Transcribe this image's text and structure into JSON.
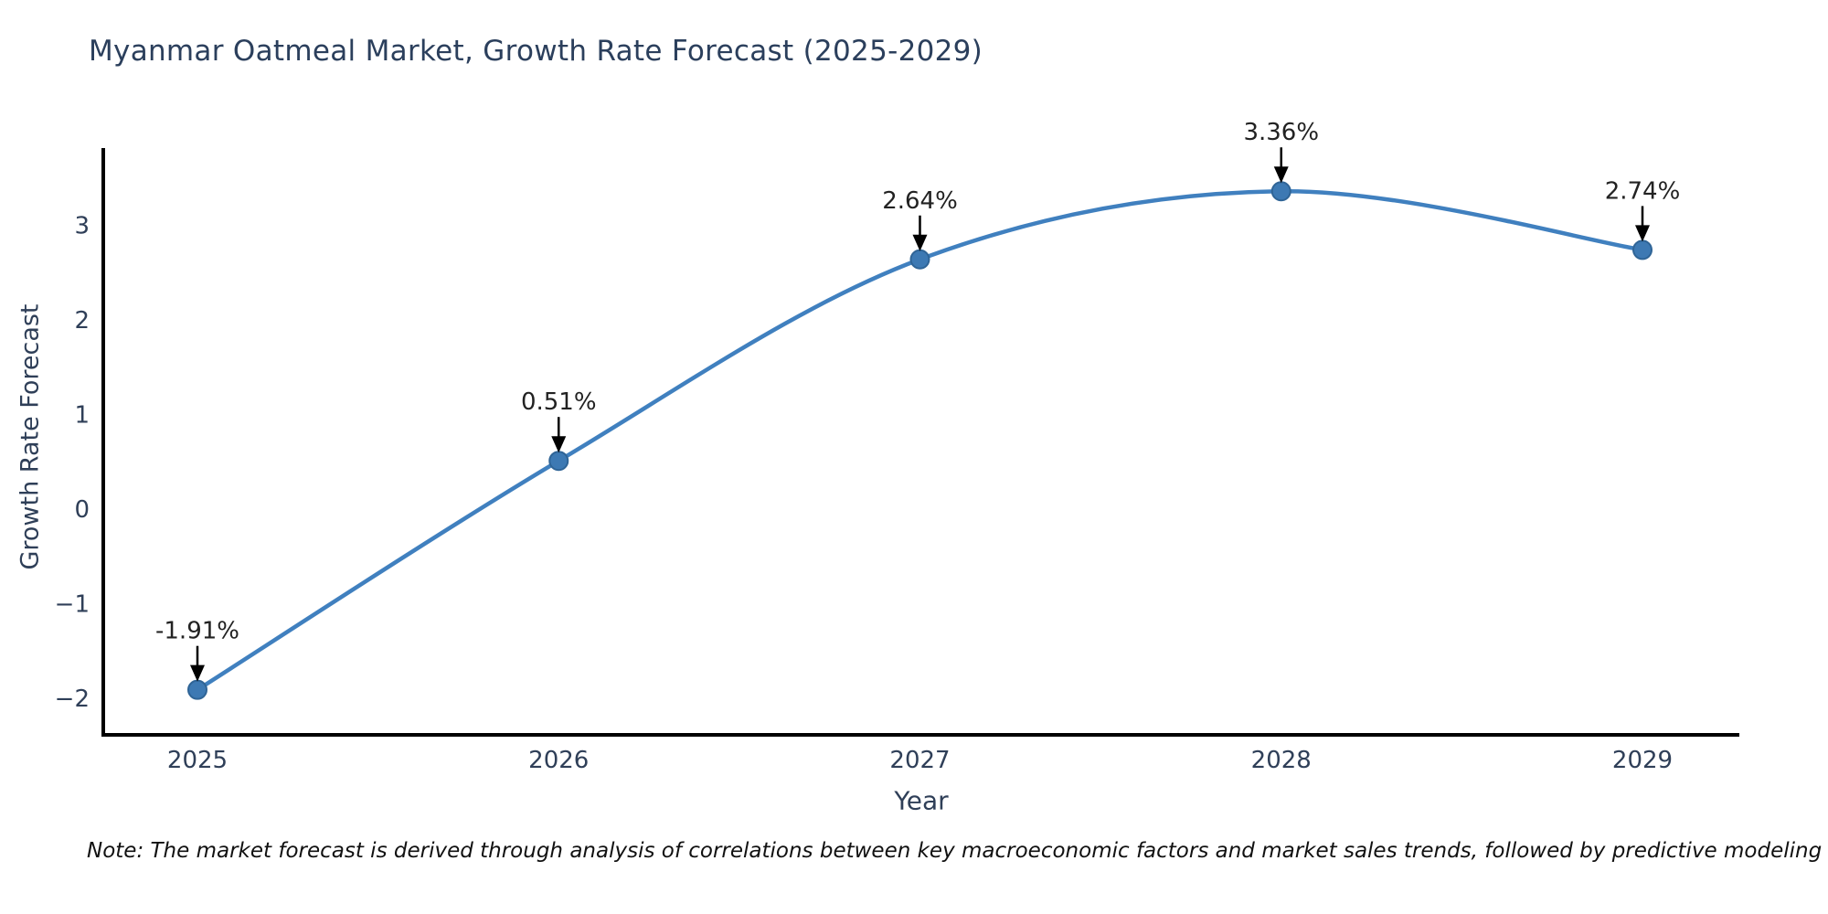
{
  "note": "Note: The market forecast is derived through analysis of correlations between key macroeconomic factors and market sales trends, followed by predictive modeling to project future sales",
  "chart_data": {
    "type": "line",
    "title": "Myanmar Oatmeal Market, Growth Rate Forecast (2025-2029)",
    "xlabel": "Year",
    "ylabel": "Growth Rate Forecast",
    "x": [
      2025,
      2026,
      2027,
      2028,
      2029
    ],
    "categories": [
      "2025",
      "2026",
      "2027",
      "2028",
      "2029"
    ],
    "series": [
      {
        "name": "Growth Rate Forecast",
        "values": [
          -1.91,
          0.51,
          2.64,
          3.36,
          2.74
        ]
      }
    ],
    "point_labels": [
      "-1.91%",
      "0.51%",
      "2.64%",
      "3.36%",
      "2.74%"
    ],
    "xticks": [
      2025,
      2026,
      2027,
      2028,
      2029
    ],
    "yticks": [
      -2,
      -1,
      0,
      1,
      2,
      3
    ],
    "xlim": [
      2024.73,
      2029.27
    ],
    "ylim": [
      -2.39,
      3.82
    ],
    "grid": false,
    "legend_position": "none",
    "line_shape": "spline",
    "annotations_have_arrows": true
  },
  "colors": {
    "background": "#ffffff",
    "line": "#4080bf",
    "marker_fill": "#3d79b3",
    "marker_edge": "#2f6496",
    "axis": "#000000",
    "arrow": "#000000",
    "title_text": "#2b3f5c",
    "tick_text": "#2f3f58",
    "annotation_text": "#222222",
    "note_text": "#111111"
  }
}
